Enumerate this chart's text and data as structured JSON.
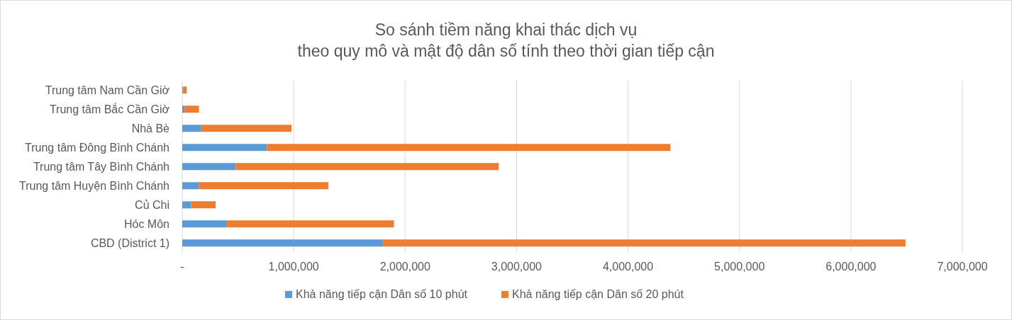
{
  "chart_data": {
    "type": "bar",
    "orientation": "horizontal",
    "stacked": true,
    "title": "So sánh tiềm năng khai thác dịch vụ\ntheo quy mô và mật độ dân số tính theo thời gian tiếp cận",
    "categories": [
      "Trung tâm Nam Cần Giờ",
      "Trung tâm Bắc Cần Giờ",
      "Nhà Bè",
      "Trung tâm Đông Bình Chánh",
      "Trung tâm Tây Bình Chánh",
      "Trung tâm Huyện Bình Chánh",
      "Củ Chi",
      "Hóc Môn",
      "CBD (District 1)"
    ],
    "series": [
      {
        "name": "Khả năng tiếp cận Dân số 10 phút",
        "color": "#5b9bd5",
        "values": [
          10000,
          20000,
          170000,
          760000,
          480000,
          150000,
          80000,
          400000,
          1800000
        ]
      },
      {
        "name": "Khả năng tiếp cận Dân số 20 phút",
        "color": "#ed7d31",
        "values": [
          30000,
          130000,
          810000,
          3620000,
          2360000,
          1160000,
          220000,
          1500000,
          4690000
        ]
      }
    ],
    "xlim": [
      0,
      7000000
    ],
    "xticks": [
      {
        "value": 0,
        "label": "-"
      },
      {
        "value": 1000000,
        "label": "1,000,000"
      },
      {
        "value": 2000000,
        "label": "2,000,000"
      },
      {
        "value": 3000000,
        "label": "3,000,000"
      },
      {
        "value": 4000000,
        "label": "4,000,000"
      },
      {
        "value": 5000000,
        "label": "5,000,000"
      },
      {
        "value": 6000000,
        "label": "6,000,000"
      },
      {
        "value": 7000000,
        "label": "7,000,000"
      }
    ],
    "grid": "x",
    "legend": "bottom"
  }
}
